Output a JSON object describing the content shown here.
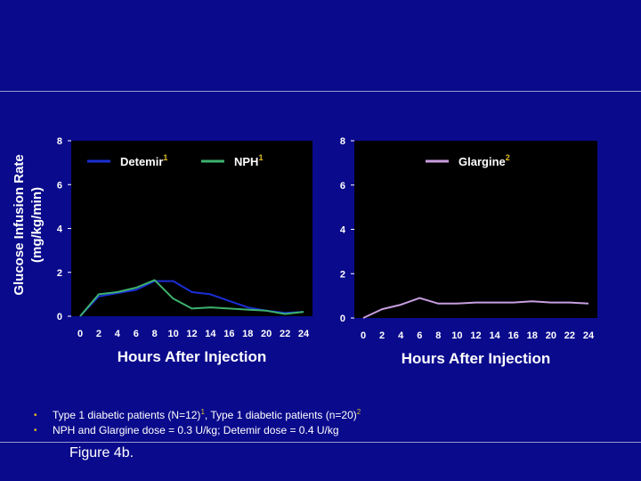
{
  "chart_data": [
    {
      "type": "line",
      "ylabel_line1": "Glucose Infusion Rate",
      "ylabel_line2": "(mg/kg/min)",
      "xlabel": "Hours After Injection",
      "xlim": [
        0,
        24
      ],
      "ylim": [
        0,
        8
      ],
      "xticks": [
        "0",
        "2",
        "4",
        "6",
        "8",
        "10",
        "12",
        "14",
        "16",
        "18",
        "20",
        "22",
        "24"
      ],
      "yticks": [
        "0",
        "2",
        "4",
        "6",
        "8"
      ],
      "grid": false,
      "legend_position": "top",
      "series": [
        {
          "name": "Detemir",
          "sup": "1",
          "color": "#1a2fd6",
          "x": [
            0,
            2,
            4,
            6,
            8,
            10,
            12,
            14,
            16,
            18,
            20,
            22,
            24
          ],
          "y": [
            0,
            0.9,
            1.05,
            1.2,
            1.6,
            1.6,
            1.1,
            1.0,
            0.7,
            0.4,
            0.25,
            0.15,
            0.2
          ]
        },
        {
          "name": "NPH",
          "sup": "1",
          "color": "#3cb26e",
          "x": [
            0,
            2,
            4,
            6,
            8,
            10,
            12,
            14,
            16,
            18,
            20,
            22,
            24
          ],
          "y": [
            0,
            1.0,
            1.1,
            1.3,
            1.65,
            0.8,
            0.35,
            0.4,
            0.35,
            0.3,
            0.25,
            0.1,
            0.2
          ]
        }
      ]
    },
    {
      "type": "line",
      "xlabel": "Hours After Injection",
      "xlim": [
        0,
        24
      ],
      "ylim": [
        0,
        8
      ],
      "xticks": [
        "0",
        "2",
        "4",
        "6",
        "8",
        "10",
        "12",
        "14",
        "16",
        "18",
        "20",
        "22",
        "24"
      ],
      "yticks": [
        "0",
        "2",
        "4",
        "6",
        "8"
      ],
      "grid": false,
      "legend_position": "top",
      "series": [
        {
          "name": "Glargine",
          "sup": "2",
          "color": "#c89ee0",
          "x": [
            0,
            2,
            4,
            6,
            8,
            10,
            12,
            14,
            16,
            18,
            20,
            22,
            24
          ],
          "y": [
            0,
            0.4,
            0.6,
            0.9,
            0.65,
            0.65,
            0.7,
            0.7,
            0.7,
            0.75,
            0.7,
            0.7,
            0.65
          ]
        }
      ]
    }
  ],
  "notes": {
    "line1_a": "Type 1 diabetic patients (N=12)",
    "line1_sup1": "1",
    "line1_b": ", Type 1 diabetic patients (n=20)",
    "line1_sup2": "2",
    "line2": "NPH and Glargine dose = 0.3 U/kg; Detemir dose = 0.4 U/kg"
  },
  "figure_label": "Figure 4b."
}
